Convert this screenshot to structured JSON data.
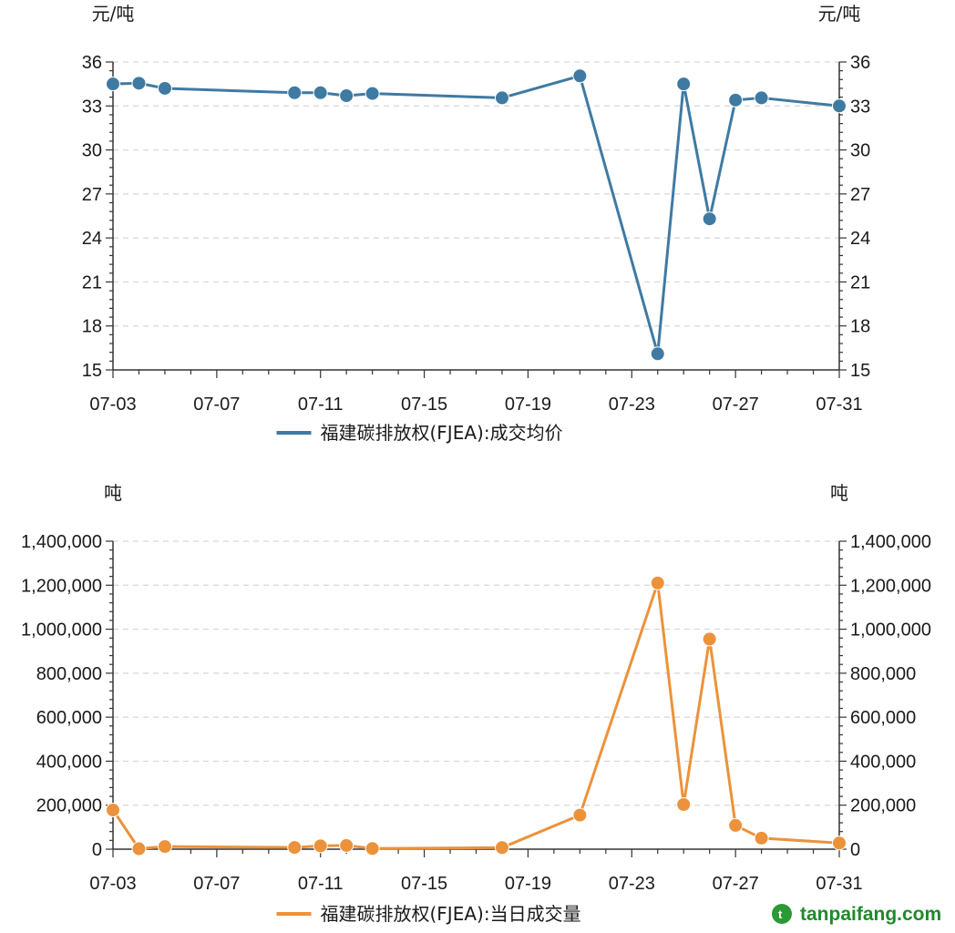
{
  "watermark": "tanpaifang.com",
  "chart_data": [
    {
      "type": "line",
      "ylabel": "元/吨",
      "ylabel_right": "元/吨",
      "ylim": [
        15,
        36
      ],
      "yticks": [
        15,
        18,
        21,
        24,
        27,
        30,
        33,
        36
      ],
      "ytick_labels": [
        "15",
        "18",
        "21",
        "24",
        "27",
        "30",
        "33",
        "36"
      ],
      "xlim": [
        "07-03",
        "07-31"
      ],
      "xticks": [
        "07-03",
        "07-07",
        "07-11",
        "07-15",
        "07-19",
        "07-23",
        "07-27",
        "07-31"
      ],
      "grid": true,
      "legend_position": "bottom-center",
      "series": [
        {
          "name": "福建碳排放权(FJEA):成交均价",
          "color": "#3f7aa3",
          "x": [
            "07-03",
            "07-04",
            "07-05",
            "07-10",
            "07-11",
            "07-12",
            "07-13",
            "07-18",
            "07-21",
            "07-24",
            "07-25",
            "07-26",
            "07-27",
            "07-28",
            "07-31"
          ],
          "values": [
            34.5,
            34.55,
            34.2,
            33.9,
            33.9,
            33.7,
            33.85,
            33.55,
            35.05,
            16.1,
            34.5,
            25.3,
            33.4,
            33.55,
            33.0
          ]
        }
      ]
    },
    {
      "type": "line",
      "ylabel": "吨",
      "ylabel_right": "吨",
      "ylim": [
        0,
        1400000
      ],
      "yticks": [
        0,
        200000,
        400000,
        600000,
        800000,
        1000000,
        1200000,
        1400000
      ],
      "ytick_labels": [
        "0",
        "200,000",
        "400,000",
        "600,000",
        "800,000",
        "1,000,000",
        "1,200,000",
        "1,400,000"
      ],
      "xlim": [
        "07-03",
        "07-31"
      ],
      "xticks": [
        "07-03",
        "07-07",
        "07-11",
        "07-15",
        "07-19",
        "07-23",
        "07-27",
        "07-31"
      ],
      "grid": true,
      "legend_position": "bottom-center",
      "series": [
        {
          "name": "福建碳排放权(FJEA):当日成交量",
          "color": "#ec923a",
          "x": [
            "07-03",
            "07-04",
            "07-05",
            "07-10",
            "07-11",
            "07-12",
            "07-13",
            "07-18",
            "07-21",
            "07-24",
            "07-25",
            "07-26",
            "07-27",
            "07-28",
            "07-31"
          ],
          "values": [
            178000,
            2000,
            12000,
            8000,
            15000,
            17000,
            3000,
            7000,
            155000,
            1210000,
            203000,
            955000,
            108000,
            50000,
            28000
          ]
        }
      ]
    }
  ]
}
